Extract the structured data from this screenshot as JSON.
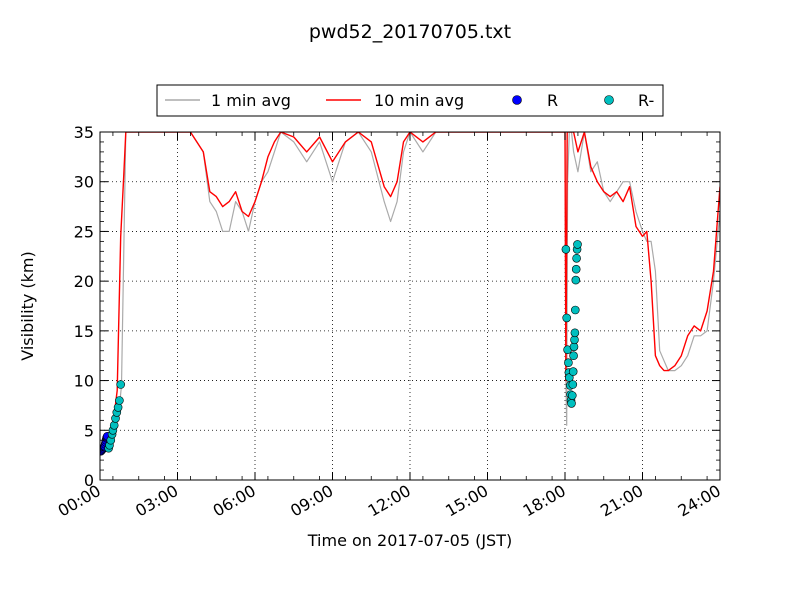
{
  "chart_data": {
    "type": "line",
    "title": "pwd52_20170705.txt",
    "xlabel": "Time on 2017-07-05 (JST)",
    "ylabel": "Visibility (km)",
    "xlim": [
      "00:00",
      "24:00"
    ],
    "ylim": [
      0,
      35
    ],
    "x_ticks": [
      "00:00",
      "03:00",
      "06:00",
      "09:00",
      "12:00",
      "15:00",
      "18:00",
      "21:00",
      "24:00"
    ],
    "y_ticks": [
      0,
      5,
      10,
      15,
      20,
      25,
      30,
      35
    ],
    "grid": true,
    "legend_position": "above plot",
    "legend": [
      "1 min avg",
      "10 min avg",
      "R",
      "R-"
    ],
    "colors": {
      "one_min": "#aaaaaa",
      "ten_min": "#ff0000",
      "R": "#0000ff",
      "R_minus": "#00bfbf"
    },
    "series": [
      {
        "name": "1 min avg",
        "x": [
          "00:00",
          "00:10",
          "00:18",
          "00:25",
          "00:30",
          "00:35",
          "00:40",
          "00:45",
          "00:50",
          "01:00",
          "01:30",
          "02:00",
          "02:30",
          "03:00",
          "03:30",
          "04:00",
          "04:15",
          "04:30",
          "04:45",
          "05:00",
          "05:15",
          "05:30",
          "05:45",
          "06:00",
          "06:15",
          "06:30",
          "06:45",
          "07:00",
          "07:30",
          "08:00",
          "08:30",
          "09:00",
          "09:30",
          "10:00",
          "10:30",
          "11:00",
          "11:15",
          "11:30",
          "11:45",
          "12:00",
          "12:30",
          "13:00",
          "13:30",
          "14:00",
          "14:30",
          "15:00",
          "15:30",
          "16:00",
          "16:30",
          "17:00",
          "17:30",
          "18:00",
          "18:02",
          "18:04",
          "18:06",
          "18:10",
          "18:15",
          "18:20",
          "18:30",
          "18:45",
          "19:00",
          "19:15",
          "19:30",
          "19:45",
          "20:00",
          "20:15",
          "20:30",
          "20:45",
          "21:00",
          "21:10",
          "21:20",
          "21:30",
          "21:40",
          "21:50",
          "22:00",
          "22:15",
          "22:30",
          "22:45",
          "23:00",
          "23:15",
          "23:30",
          "23:45",
          "24:00"
        ],
        "y": [
          3.0,
          3.0,
          3.3,
          3.6,
          4.6,
          5.2,
          6.1,
          7.4,
          9.5,
          35,
          35,
          35,
          35,
          35,
          35,
          33,
          28,
          27,
          25,
          25,
          28,
          27,
          25,
          28,
          30,
          31,
          33,
          35,
          34,
          32,
          34,
          30,
          34,
          35,
          33,
          28,
          26,
          28,
          33,
          35,
          33,
          35,
          35,
          35,
          35,
          35,
          35,
          35,
          35,
          35,
          35,
          35,
          10,
          5.5,
          30,
          35,
          35,
          33,
          31,
          35,
          31,
          32,
          29,
          28,
          29,
          30,
          30,
          27,
          25,
          24,
          24,
          21,
          13,
          12,
          11,
          11,
          11.5,
          12.5,
          14.5,
          14.5,
          15,
          20,
          27
        ]
      },
      {
        "name": "10 min avg",
        "x": [
          "00:00",
          "00:18",
          "00:30",
          "00:40",
          "00:48",
          "00:55",
          "01:00",
          "01:30",
          "02:00",
          "02:30",
          "03:00",
          "03:30",
          "04:00",
          "04:15",
          "04:30",
          "04:45",
          "05:00",
          "05:15",
          "05:30",
          "05:45",
          "06:00",
          "06:15",
          "06:30",
          "06:45",
          "07:00",
          "07:30",
          "08:00",
          "08:30",
          "09:00",
          "09:30",
          "10:00",
          "10:30",
          "11:00",
          "11:15",
          "11:30",
          "11:45",
          "12:00",
          "12:30",
          "13:00",
          "13:30",
          "14:00",
          "14:30",
          "15:00",
          "15:30",
          "16:00",
          "16:30",
          "17:00",
          "17:30",
          "18:00",
          "18:02",
          "18:05",
          "18:10",
          "18:20",
          "18:30",
          "18:45",
          "19:00",
          "19:15",
          "19:30",
          "19:45",
          "20:00",
          "20:15",
          "20:30",
          "20:45",
          "21:00",
          "21:10",
          "21:20",
          "21:30",
          "21:40",
          "21:50",
          "22:00",
          "22:15",
          "22:30",
          "22:45",
          "23:00",
          "23:15",
          "23:30",
          "23:45",
          "24:00"
        ],
        "y": [
          3.2,
          3.5,
          5.5,
          9.0,
          24.5,
          30.5,
          35,
          35,
          35,
          35,
          35,
          35,
          33,
          29,
          28.5,
          27.5,
          28,
          29,
          27,
          26.5,
          28,
          30,
          32.5,
          34,
          35,
          34.5,
          33,
          34.5,
          32,
          34,
          35,
          34,
          29.5,
          28.5,
          30,
          34,
          35,
          34,
          35,
          35,
          35,
          35,
          35,
          35,
          35,
          35,
          35,
          35,
          35,
          10,
          35,
          35,
          35,
          33,
          35,
          31.5,
          30,
          29,
          28.5,
          29,
          28,
          29.5,
          25.5,
          24.5,
          25,
          20,
          12.5,
          11.5,
          11,
          11,
          11.5,
          12.5,
          14.5,
          15.5,
          15,
          17,
          21,
          29.5
        ]
      },
      {
        "name": "R",
        "points": [
          [
            "00:02",
            2.9
          ],
          [
            "00:04",
            3.0
          ],
          [
            "00:06",
            3.1
          ],
          [
            "00:08",
            3.2
          ],
          [
            "00:10",
            3.3
          ],
          [
            "00:11",
            3.4
          ],
          [
            "00:12",
            3.6
          ],
          [
            "00:13",
            3.8
          ],
          [
            "00:14",
            4.0
          ],
          [
            "00:15",
            4.2
          ],
          [
            "00:16",
            4.3
          ],
          [
            "00:17",
            4.4
          ]
        ]
      },
      {
        "name": "R-",
        "points": [
          [
            "00:20",
            3.2
          ],
          [
            "00:22",
            3.5
          ],
          [
            "00:25",
            4.0
          ],
          [
            "00:28",
            4.6
          ],
          [
            "00:30",
            5.0
          ],
          [
            "00:33",
            5.5
          ],
          [
            "00:36",
            6.2
          ],
          [
            "00:39",
            6.8
          ],
          [
            "00:42",
            7.3
          ],
          [
            "00:45",
            8.0
          ],
          [
            "00:48",
            9.6
          ],
          [
            "18:02",
            23.2
          ],
          [
            "18:04",
            16.3
          ],
          [
            "18:06",
            13.1
          ],
          [
            "18:08",
            11.8
          ],
          [
            "18:09",
            10.8
          ],
          [
            "18:10",
            10.3
          ],
          [
            "18:12",
            9.5
          ],
          [
            "18:13",
            8.6
          ],
          [
            "18:14",
            8.0
          ],
          [
            "18:15",
            7.7
          ],
          [
            "18:17",
            8.5
          ],
          [
            "18:18",
            9.6
          ],
          [
            "18:19",
            10.9
          ],
          [
            "18:20",
            12.5
          ],
          [
            "18:21",
            13.4
          ],
          [
            "18:22",
            14.1
          ],
          [
            "18:23",
            14.8
          ],
          [
            "18:24",
            17.1
          ],
          [
            "18:25",
            20.1
          ],
          [
            "18:26",
            21.2
          ],
          [
            "18:27",
            22.3
          ],
          [
            "18:28",
            23.2
          ],
          [
            "18:29",
            23.7
          ]
        ]
      }
    ]
  }
}
